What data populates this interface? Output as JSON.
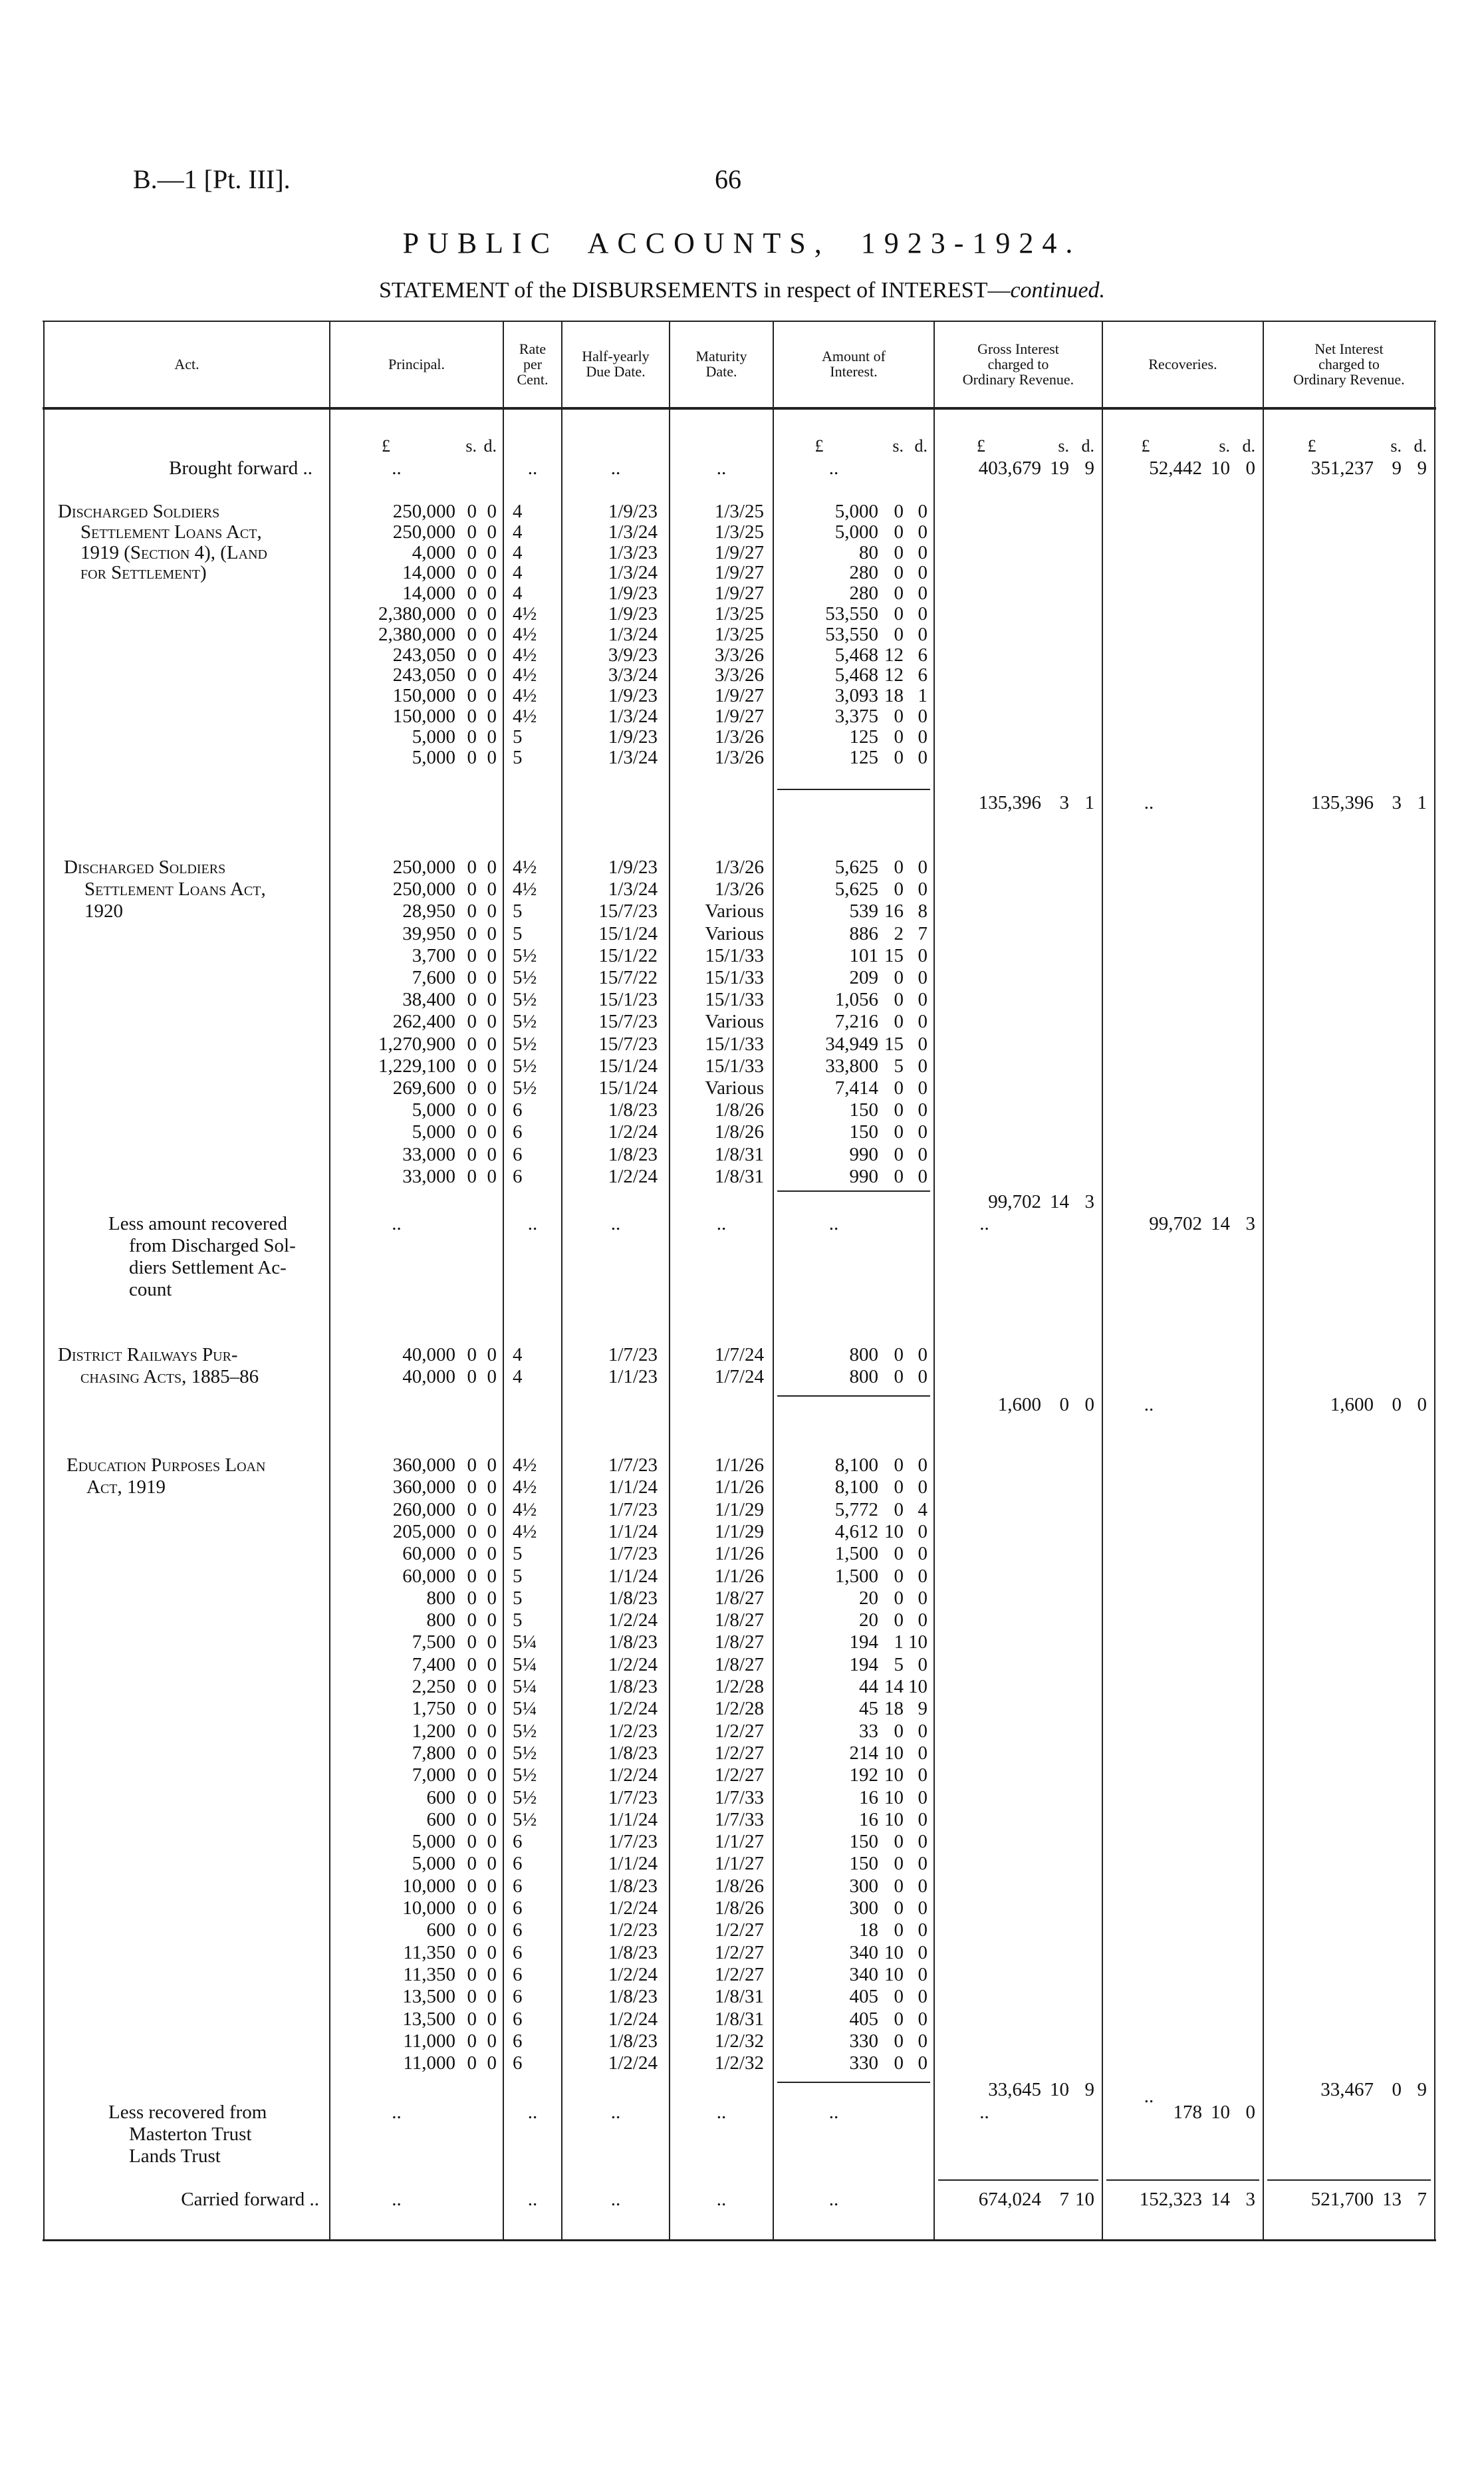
{
  "header": {
    "ref": "B.—1 [Pt. III].",
    "page": "66",
    "title": "PUBLIC ACCOUNTS, 1923-1924.",
    "subtitle_main": "STATEMENT of the DISBURSEMENTS in respect of INTEREST—",
    "subtitle_italic": "continued."
  },
  "columns": {
    "act": [
      "Act."
    ],
    "principal": [
      "Principal."
    ],
    "rate": [
      "Rate",
      "per",
      "Cent."
    ],
    "half": [
      "Half-yearly",
      "Due Date."
    ],
    "maturity": [
      "Maturity",
      "Date."
    ],
    "amount": [
      "Amount of",
      "Interest."
    ],
    "gross": [
      "Gross Interest",
      "charged to",
      "Ordinary Revenue."
    ],
    "recoveries": [
      "Recoveries."
    ],
    "net": [
      "Net Interest",
      "charged to",
      "Ordinary Revenue."
    ]
  },
  "units": {
    "pound": "£",
    "shilling": "s.",
    "pence": "d."
  },
  "dots": "..",
  "brought_forward": {
    "label": "Brought forward ..",
    "gross": [
      "403,679",
      "19",
      "9"
    ],
    "recoveries": [
      "52,442",
      "10",
      "0"
    ],
    "net": [
      "351,237",
      "9",
      "9"
    ]
  },
  "sections": [
    {
      "act": [
        "Discharged Soldiers",
        "Settlement Loans Act,",
        "1919 (Section 4), (Land",
        "for Settlement)"
      ],
      "rows": [
        [
          "250,000",
          "0",
          "0",
          "4",
          "1/9/23",
          "1/3/25",
          "5,000",
          "0",
          "0"
        ],
        [
          "250,000",
          "0",
          "0",
          "4",
          "1/3/24",
          "1/3/25",
          "5,000",
          "0",
          "0"
        ],
        [
          "4,000",
          "0",
          "0",
          "4",
          "1/3/23",
          "1/9/27",
          "80",
          "0",
          "0"
        ],
        [
          "14,000",
          "0",
          "0",
          "4",
          "1/3/24",
          "1/9/27",
          "280",
          "0",
          "0"
        ],
        [
          "14,000",
          "0",
          "0",
          "4",
          "1/9/23",
          "1/9/27",
          "280",
          "0",
          "0"
        ],
        [
          "2,380,000",
          "0",
          "0",
          "4½",
          "1/9/23",
          "1/3/25",
          "53,550",
          "0",
          "0"
        ],
        [
          "2,380,000",
          "0",
          "0",
          "4½",
          "1/3/24",
          "1/3/25",
          "53,550",
          "0",
          "0"
        ],
        [
          "243,050",
          "0",
          "0",
          "4½",
          "3/9/23",
          "3/3/26",
          "5,468",
          "12",
          "6"
        ],
        [
          "243,050",
          "0",
          "0",
          "4½",
          "3/3/24",
          "3/3/26",
          "5,468",
          "12",
          "6"
        ],
        [
          "150,000",
          "0",
          "0",
          "4½",
          "1/9/23",
          "1/9/27",
          "3,093",
          "18",
          "1"
        ],
        [
          "150,000",
          "0",
          "0",
          "4½",
          "1/3/24",
          "1/9/27",
          "3,375",
          "0",
          "0"
        ],
        [
          "5,000",
          "0",
          "0",
          "5",
          "1/9/23",
          "1/3/26",
          "125",
          "0",
          "0"
        ],
        [
          "5,000",
          "0",
          "0",
          "5",
          "1/3/24",
          "1/3/26",
          "125",
          "0",
          "0"
        ]
      ],
      "subtotal": {
        "gross": [
          "135,396",
          "3",
          "1"
        ],
        "recoveries": "..",
        "net": [
          "135,396",
          "3",
          "1"
        ]
      }
    },
    {
      "act": [
        "Discharged Soldiers",
        "Settlement Loans Act,",
        "1920"
      ],
      "rows": [
        [
          "250,000",
          "0",
          "0",
          "4½",
          "1/9/23",
          "1/3/26",
          "5,625",
          "0",
          "0"
        ],
        [
          "250,000",
          "0",
          "0",
          "4½",
          "1/3/24",
          "1/3/26",
          "5,625",
          "0",
          "0"
        ],
        [
          "28,950",
          "0",
          "0",
          "5",
          "15/7/23",
          "Various",
          "539",
          "16",
          "8"
        ],
        [
          "39,950",
          "0",
          "0",
          "5",
          "15/1/24",
          "Various",
          "886",
          "2",
          "7"
        ],
        [
          "3,700",
          "0",
          "0",
          "5½",
          "15/1/22",
          "15/1/33",
          "101",
          "15",
          "0"
        ],
        [
          "7,600",
          "0",
          "0",
          "5½",
          "15/7/22",
          "15/1/33",
          "209",
          "0",
          "0"
        ],
        [
          "38,400",
          "0",
          "0",
          "5½",
          "15/1/23",
          "15/1/33",
          "1,056",
          "0",
          "0"
        ],
        [
          "262,400",
          "0",
          "0",
          "5½",
          "15/7/23",
          "Various",
          "7,216",
          "0",
          "0"
        ],
        [
          "1,270,900",
          "0",
          "0",
          "5½",
          "15/7/23",
          "15/1/33",
          "34,949",
          "15",
          "0"
        ],
        [
          "1,229,100",
          "0",
          "0",
          "5½",
          "15/1/24",
          "15/1/33",
          "33,800",
          "5",
          "0"
        ],
        [
          "269,600",
          "0",
          "0",
          "5½",
          "15/1/24",
          "Various",
          "7,414",
          "0",
          "0"
        ],
        [
          "5,000",
          "0",
          "0",
          "6",
          "1/8/23",
          "1/8/26",
          "150",
          "0",
          "0"
        ],
        [
          "5,000",
          "0",
          "0",
          "6",
          "1/2/24",
          "1/8/26",
          "150",
          "0",
          "0"
        ],
        [
          "33,000",
          "0",
          "0",
          "6",
          "1/8/23",
          "1/8/31",
          "990",
          "0",
          "0"
        ],
        [
          "33,000",
          "0",
          "0",
          "6",
          "1/2/24",
          "1/8/31",
          "990",
          "0",
          "0"
        ]
      ],
      "subtotal": {
        "gross": [
          "99,702",
          "14",
          "3"
        ]
      },
      "less": {
        "label": [
          "Less amount recovered",
          "from Discharged Sol-",
          "diers Settlement Ac-",
          "count"
        ],
        "gross": "..",
        "recoveries": [
          "99,702",
          "14",
          "3"
        ]
      }
    },
    {
      "act": [
        "District Railways Pur-",
        "chasing Acts, 1885–86"
      ],
      "rows": [
        [
          "40,000",
          "0",
          "0",
          "4",
          "1/7/23",
          "1/7/24",
          "800",
          "0",
          "0"
        ],
        [
          "40,000",
          "0",
          "0",
          "4",
          "1/1/23",
          "1/7/24",
          "800",
          "0",
          "0"
        ]
      ],
      "subtotal": {
        "gross": [
          "1,600",
          "0",
          "0"
        ],
        "recoveries": "..",
        "net": [
          "1,600",
          "0",
          "0"
        ]
      }
    },
    {
      "act": [
        "Education Purposes Loan",
        "Act, 1919"
      ],
      "rows": [
        [
          "360,000",
          "0",
          "0",
          "4½",
          "1/7/23",
          "1/1/26",
          "8,100",
          "0",
          "0"
        ],
        [
          "360,000",
          "0",
          "0",
          "4½",
          "1/1/24",
          "1/1/26",
          "8,100",
          "0",
          "0"
        ],
        [
          "260,000",
          "0",
          "0",
          "4½",
          "1/7/23",
          "1/1/29",
          "5,772",
          "0",
          "4"
        ],
        [
          "205,000",
          "0",
          "0",
          "4½",
          "1/1/24",
          "1/1/29",
          "4,612",
          "10",
          "0"
        ],
        [
          "60,000",
          "0",
          "0",
          "5",
          "1/7/23",
          "1/1/26",
          "1,500",
          "0",
          "0"
        ],
        [
          "60,000",
          "0",
          "0",
          "5",
          "1/1/24",
          "1/1/26",
          "1,500",
          "0",
          "0"
        ],
        [
          "800",
          "0",
          "0",
          "5",
          "1/8/23",
          "1/8/27",
          "20",
          "0",
          "0"
        ],
        [
          "800",
          "0",
          "0",
          "5",
          "1/2/24",
          "1/8/27",
          "20",
          "0",
          "0"
        ],
        [
          "7,500",
          "0",
          "0",
          "5¼",
          "1/8/23",
          "1/8/27",
          "194",
          "1",
          "10"
        ],
        [
          "7,400",
          "0",
          "0",
          "5¼",
          "1/2/24",
          "1/8/27",
          "194",
          "5",
          "0"
        ],
        [
          "2,250",
          "0",
          "0",
          "5¼",
          "1/8/23",
          "1/2/28",
          "44",
          "14",
          "10"
        ],
        [
          "1,750",
          "0",
          "0",
          "5¼",
          "1/2/24",
          "1/2/28",
          "45",
          "18",
          "9"
        ],
        [
          "1,200",
          "0",
          "0",
          "5½",
          "1/2/23",
          "1/2/27",
          "33",
          "0",
          "0"
        ],
        [
          "7,800",
          "0",
          "0",
          "5½",
          "1/8/23",
          "1/2/27",
          "214",
          "10",
          "0"
        ],
        [
          "7,000",
          "0",
          "0",
          "5½",
          "1/2/24",
          "1/2/27",
          "192",
          "10",
          "0"
        ],
        [
          "600",
          "0",
          "0",
          "5½",
          "1/7/23",
          "1/7/33",
          "16",
          "10",
          "0"
        ],
        [
          "600",
          "0",
          "0",
          "5½",
          "1/1/24",
          "1/7/33",
          "16",
          "10",
          "0"
        ],
        [
          "5,000",
          "0",
          "0",
          "6",
          "1/7/23",
          "1/1/27",
          "150",
          "0",
          "0"
        ],
        [
          "5,000",
          "0",
          "0",
          "6",
          "1/1/24",
          "1/1/27",
          "150",
          "0",
          "0"
        ],
        [
          "10,000",
          "0",
          "0",
          "6",
          "1/8/23",
          "1/8/26",
          "300",
          "0",
          "0"
        ],
        [
          "10,000",
          "0",
          "0",
          "6",
          "1/2/24",
          "1/8/26",
          "300",
          "0",
          "0"
        ],
        [
          "600",
          "0",
          "0",
          "6",
          "1/2/23",
          "1/2/27",
          "18",
          "0",
          "0"
        ],
        [
          "11,350",
          "0",
          "0",
          "6",
          "1/8/23",
          "1/2/27",
          "340",
          "10",
          "0"
        ],
        [
          "11,350",
          "0",
          "0",
          "6",
          "1/2/24",
          "1/2/27",
          "340",
          "10",
          "0"
        ],
        [
          "13,500",
          "0",
          "0",
          "6",
          "1/8/23",
          "1/8/31",
          "405",
          "0",
          "0"
        ],
        [
          "13,500",
          "0",
          "0",
          "6",
          "1/2/24",
          "1/8/31",
          "405",
          "0",
          "0"
        ],
        [
          "11,000",
          "0",
          "0",
          "6",
          "1/8/23",
          "1/2/32",
          "330",
          "0",
          "0"
        ],
        [
          "11,000",
          "0",
          "0",
          "6",
          "1/2/24",
          "1/2/32",
          "330",
          "0",
          "0"
        ]
      ],
      "subtotal": {
        "gross": [
          "33,645",
          "10",
          "9"
        ],
        "recoveries": "..",
        "net": [
          "33,467",
          "0",
          "9"
        ]
      },
      "less": {
        "label": [
          "Less recovered from",
          "Masterton Trust",
          "Lands Trust"
        ],
        "gross": "..",
        "recoveries": [
          "178",
          "10",
          "0"
        ]
      }
    }
  ],
  "carried_forward": {
    "label": "Carried forward ..",
    "gross": [
      "674,024",
      "7",
      "10"
    ],
    "recoveries": [
      "152,323",
      "14",
      "3"
    ],
    "net": [
      "521,700",
      "13",
      "7"
    ]
  }
}
